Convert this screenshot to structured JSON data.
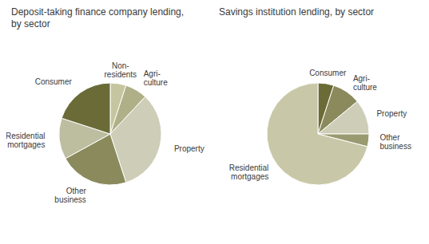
{
  "chart_data": [
    {
      "type": "pie",
      "title": "Deposit-taking finance company lending,\nby sector",
      "categories": [
        "Non-\nresidents",
        "Agri-\nculture",
        "Property",
        "Other\nbusiness",
        "Residential\nmortgages",
        "Consumer"
      ],
      "values": [
        5,
        7,
        33,
        22,
        13,
        20
      ],
      "colors": [
        "#c5c5a0",
        "#b0b088",
        "#ceceb8",
        "#8a8a5c",
        "#bdbda0",
        "#6b6b38"
      ]
    },
    {
      "type": "pie",
      "title": "Savings institution lending, by sector",
      "categories": [
        "Consumer",
        "Agri-\nculture",
        "Property",
        "Other\nbusiness",
        "Residential\nmortgages"
      ],
      "values": [
        5,
        9,
        11,
        4,
        71
      ],
      "colors": [
        "#6b6b38",
        "#8a8a5c",
        "#ceceb8",
        "#9a9a70",
        "#c8c8a8"
      ]
    }
  ]
}
